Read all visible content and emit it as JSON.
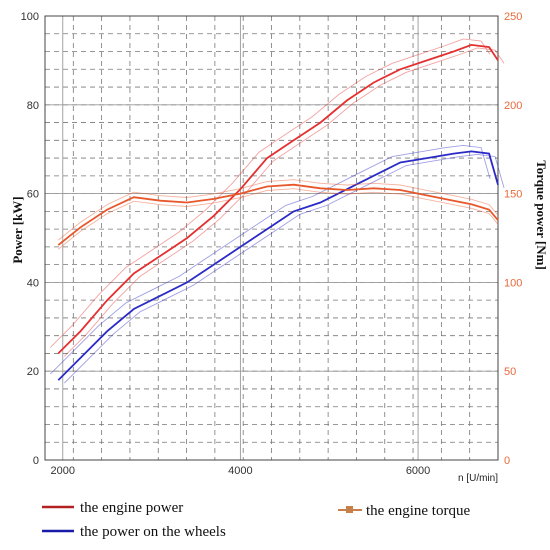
{
  "chart_data": {
    "type": "line",
    "xlabel": "n [U/min]",
    "ylabel_left": "Power [kW]",
    "ylabel_right": "Torque power [Nm]",
    "xlim": [
      1800,
      6900
    ],
    "ylim_left": [
      0,
      100
    ],
    "ylim_right": [
      0,
      250
    ],
    "x_ticks": [
      2000,
      4000,
      6000
    ],
    "y_ticks_left": [
      0,
      20,
      40,
      60,
      80,
      100
    ],
    "y_ticks_right": [
      0,
      50,
      100,
      150,
      200,
      250
    ],
    "grid": true,
    "colors": {
      "engine_power": "#e53030",
      "power_wheels": "#2a2ac8",
      "engine_torque": "#e8572a",
      "right_axis": "#e8693a"
    },
    "series": [
      {
        "name": "the engine power",
        "axis": "left",
        "x": [
          1950,
          2200,
          2500,
          2800,
          3100,
          3400,
          3700,
          4000,
          4300,
          4600,
          4900,
          5200,
          5500,
          5800,
          6100,
          6400,
          6600,
          6800,
          6900
        ],
        "y": [
          24,
          29,
          36,
          42,
          46,
          50,
          55,
          61,
          68,
          72,
          76,
          81,
          85,
          88,
          90,
          92,
          93.5,
          93,
          90
        ]
      },
      {
        "name": "the power on the wheels",
        "axis": "left",
        "x": [
          1950,
          2200,
          2500,
          2800,
          3100,
          3400,
          3700,
          4000,
          4300,
          4600,
          4900,
          5200,
          5500,
          5800,
          6100,
          6400,
          6600,
          6800,
          6900
        ],
        "y": [
          18,
          23,
          29,
          34,
          37,
          40,
          44,
          48,
          52,
          56,
          58,
          61,
          64,
          67,
          68,
          69,
          69.5,
          69,
          62
        ]
      },
      {
        "name": "the engine torque",
        "axis": "right",
        "x": [
          1950,
          2200,
          2500,
          2800,
          3100,
          3400,
          3700,
          4000,
          4300,
          4600,
          4900,
          5200,
          5500,
          5800,
          6100,
          6400,
          6600,
          6800,
          6900
        ],
        "y": [
          121,
          131,
          141,
          148,
          146,
          145,
          147,
          150,
          154,
          155,
          153,
          152,
          153,
          152,
          149,
          146,
          144,
          141,
          135
        ]
      }
    ],
    "legend": [
      "the engine power",
      "the power on the wheels",
      "the engine torque"
    ],
    "legend_placement": "bottom"
  }
}
